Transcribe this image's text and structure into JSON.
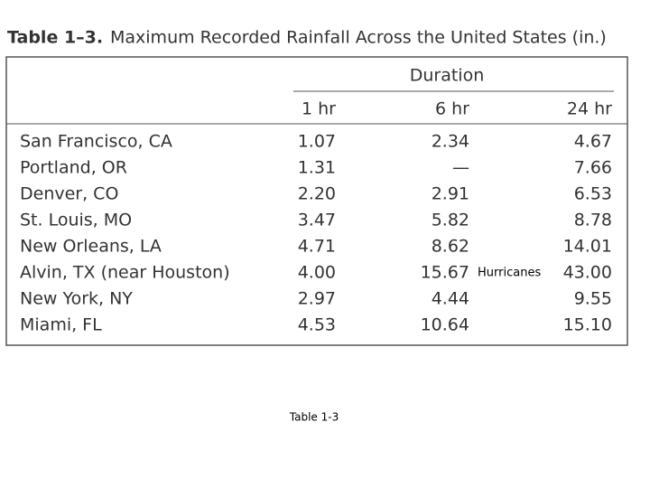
{
  "title": {
    "label": "Table 1–3.",
    "text": "Maximum Recorded Rainfall Across the United States (in.)"
  },
  "table": {
    "group_header": "Duration",
    "columns": [
      "1 hr",
      "6 hr",
      "24 hr"
    ],
    "rows": [
      [
        "San Francisco, CA",
        "1.07",
        "2.34",
        "4.67"
      ],
      [
        "Portland, OR",
        "1.31",
        "—",
        "7.66"
      ],
      [
        "Denver, CO",
        "2.20",
        "2.91",
        "6.53"
      ],
      [
        "St. Louis, MO",
        "3.47",
        "5.82",
        "8.78"
      ],
      [
        "New Orleans, LA",
        "4.71",
        "8.62",
        "14.01"
      ],
      [
        "Alvin, TX (near Houston)",
        "4.00",
        "15.67",
        "43.00"
      ],
      [
        "New York, NY",
        "2.97",
        "4.44",
        "9.55"
      ],
      [
        "Miami, FL",
        "4.53",
        "10.64",
        "15.10"
      ]
    ]
  },
  "annotation": "Hurricanes",
  "caption": "Table 1-3"
}
